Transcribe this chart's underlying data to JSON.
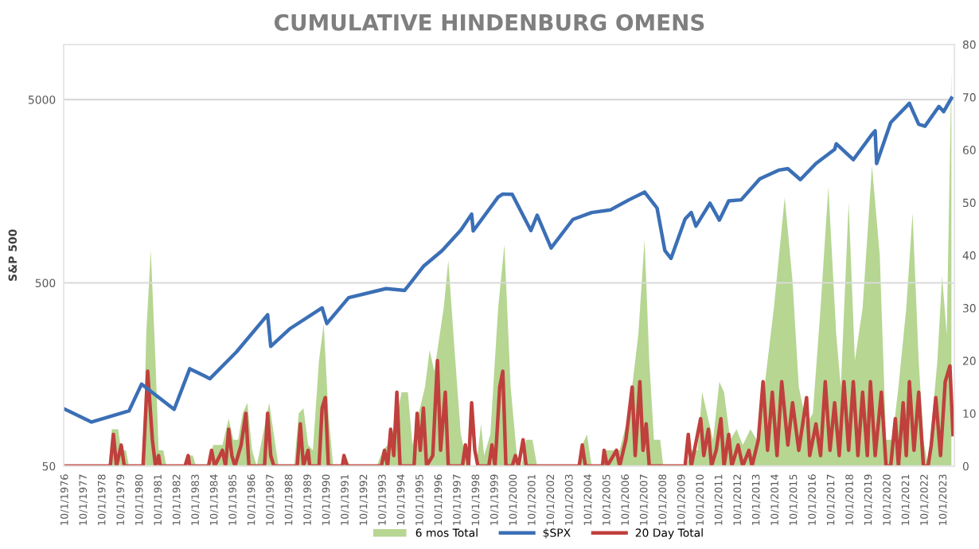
{
  "chart_data": {
    "type": "line",
    "title": "CUMULATIVE HINDENBURG OMENS",
    "ylabel": "S&P 500",
    "log": "y",
    "grid": "y",
    "legend": "bottom",
    "marker": "none",
    "line_style": "solid",
    "xlim": [
      "1976-09",
      "2024-05"
    ],
    "xticks": [
      {
        "value": "1976-10-01",
        "label": "10/1/1976"
      },
      {
        "value": "1977-10-01",
        "label": "10/1/1977"
      },
      {
        "value": "1978-10-01",
        "label": "10/1/1978"
      },
      {
        "value": "1979-10-01",
        "label": "10/1/1979"
      },
      {
        "value": "1980-10-01",
        "label": "10/1/1980"
      },
      {
        "value": "1981-10-01",
        "label": "10/1/1981"
      },
      {
        "value": "1982-10-01",
        "label": "10/1/1982"
      },
      {
        "value": "1983-10-01",
        "label": "10/1/1983"
      },
      {
        "value": "1984-10-01",
        "label": "10/1/1984"
      },
      {
        "value": "1985-10-01",
        "label": "10/1/1985"
      },
      {
        "value": "1986-10-01",
        "label": "10/1/1986"
      },
      {
        "value": "1987-10-01",
        "label": "10/1/1987"
      },
      {
        "value": "1988-10-01",
        "label": "10/1/1988"
      },
      {
        "value": "1989-10-01",
        "label": "10/1/1989"
      },
      {
        "value": "1990-10-01",
        "label": "10/1/1990"
      },
      {
        "value": "1991-10-01",
        "label": "10/1/1991"
      },
      {
        "value": "1992-10-01",
        "label": "10/1/1992"
      },
      {
        "value": "1993-10-01",
        "label": "10/1/1993"
      },
      {
        "value": "1994-10-01",
        "label": "10/1/1994"
      },
      {
        "value": "1995-10-01",
        "label": "10/1/1995"
      },
      {
        "value": "1996-10-01",
        "label": "10/1/1996"
      },
      {
        "value": "1997-10-01",
        "label": "10/1/1997"
      },
      {
        "value": "1998-10-01",
        "label": "10/1/1998"
      },
      {
        "value": "1999-10-01",
        "label": "10/1/1999"
      },
      {
        "value": "2000-10-01",
        "label": "10/1/2000"
      },
      {
        "value": "2001-10-01",
        "label": "10/1/2001"
      },
      {
        "value": "2002-10-01",
        "label": "10/1/2002"
      },
      {
        "value": "2003-10-01",
        "label": "10/1/2003"
      },
      {
        "value": "2004-10-01",
        "label": "10/1/2004"
      },
      {
        "value": "2005-10-01",
        "label": "10/1/2005"
      },
      {
        "value": "2006-10-01",
        "label": "10/1/2006"
      },
      {
        "value": "2007-10-01",
        "label": "10/1/2007"
      },
      {
        "value": "2008-10-01",
        "label": "10/1/2008"
      },
      {
        "value": "2009-10-01",
        "label": "10/1/2009"
      },
      {
        "value": "2010-10-01",
        "label": "10/1/2010"
      },
      {
        "value": "2011-10-01",
        "label": "10/1/2011"
      },
      {
        "value": "2012-10-01",
        "label": "10/1/2012"
      },
      {
        "value": "2013-10-01",
        "label": "10/1/2013"
      },
      {
        "value": "2014-10-01",
        "label": "10/1/2014"
      },
      {
        "value": "2015-10-01",
        "label": "10/1/2015"
      },
      {
        "value": "2016-10-01",
        "label": "10/1/2016"
      },
      {
        "value": "2017-10-01",
        "label": "10/1/2017"
      },
      {
        "value": "2018-10-01",
        "label": "10/1/2018"
      },
      {
        "value": "2019-10-01",
        "label": "10/1/2019"
      },
      {
        "value": "2020-10-01",
        "label": "10/1/2020"
      },
      {
        "value": "2021-10-01",
        "label": "10/1/2021"
      },
      {
        "value": "2022-10-01",
        "label": "10/1/2022"
      },
      {
        "value": "2023-10-01",
        "label": "10/1/2023"
      }
    ],
    "ylim": [
      50,
      10000
    ],
    "yticks": [
      50,
      500,
      5000
    ],
    "y2lim": [
      0,
      80
    ],
    "y2ticks": [
      0,
      10,
      20,
      30,
      40,
      50,
      60,
      70,
      80
    ],
    "series": [
      {
        "name": "6 mos Total",
        "type": "area",
        "axis": "y2",
        "color": "#a9cf7f",
        "x": [
          "1976-10",
          "1979-02",
          "1979-04",
          "1979-08",
          "1979-10",
          "1980-01",
          "1980-03",
          "1980-12",
          "1981-02",
          "1981-05",
          "1981-08",
          "1981-10",
          "1982-01",
          "1982-03",
          "1983-03",
          "1983-05",
          "1983-08",
          "1983-10",
          "1984-06",
          "1984-09",
          "1985-03",
          "1985-07",
          "1985-10",
          "1986-01",
          "1986-04",
          "1986-07",
          "1986-10",
          "1987-01",
          "1987-07",
          "1987-09",
          "1987-12",
          "1988-03",
          "1989-01",
          "1989-04",
          "1989-07",
          "1989-10",
          "1990-01",
          "1990-05",
          "1990-08",
          "1990-11",
          "1991-02",
          "1991-08",
          "1991-10",
          "1992-01",
          "1993-06",
          "1993-10",
          "1994-01",
          "1994-06",
          "1994-10",
          "1995-02",
          "1995-05",
          "1995-09",
          "1996-01",
          "1996-04",
          "1996-07",
          "1997-01",
          "1997-04",
          "1997-08",
          "1997-12",
          "1998-03",
          "1998-06",
          "1998-10",
          "1999-01",
          "1999-03",
          "1999-07",
          "1999-12",
          "2000-04",
          "2000-08",
          "2000-12",
          "2001-03",
          "2001-06",
          "2001-10",
          "2002-01",
          "2004-03",
          "2004-06",
          "2004-09",
          "2004-12",
          "2005-06",
          "2005-09",
          "2006-01",
          "2006-06",
          "2006-12",
          "2007-06",
          "2007-10",
          "2008-01",
          "2008-04",
          "2008-08",
          "2008-10",
          "2010-01",
          "2010-04",
          "2010-08",
          "2010-11",
          "2011-02",
          "2011-06",
          "2011-10",
          "2012-01",
          "2012-05",
          "2012-09",
          "2013-01",
          "2013-06",
          "2013-10",
          "2014-03",
          "2014-09",
          "2015-04",
          "2015-09",
          "2016-01",
          "2016-06",
          "2016-10",
          "2017-03",
          "2017-08",
          "2018-01",
          "2018-04",
          "2018-09",
          "2019-01",
          "2019-06",
          "2019-12",
          "2020-05",
          "2020-09",
          "2021-01",
          "2021-05",
          "2021-10",
          "2022-02",
          "2022-06",
          "2022-09",
          "2022-12",
          "2023-03",
          "2023-06",
          "2023-09",
          "2023-12",
          "2024-03"
        ],
        "values": [
          0,
          0,
          7,
          7,
          3,
          3,
          0,
          0,
          25,
          41,
          20,
          3,
          3,
          0,
          0,
          2,
          2,
          0,
          0,
          4,
          4,
          9,
          5,
          5,
          10,
          12,
          3,
          0,
          9,
          12,
          6,
          0,
          0,
          10,
          11,
          4,
          3,
          20,
          27,
          10,
          0,
          0,
          2,
          0,
          0,
          3,
          4,
          8,
          14,
          14,
          4,
          10,
          15,
          22,
          18,
          30,
          39,
          22,
          6,
          2,
          0,
          0,
          8,
          2,
          6,
          30,
          42,
          15,
          2,
          0,
          5,
          5,
          0,
          0,
          4,
          6,
          0,
          0,
          3,
          3,
          3,
          10,
          25,
          43,
          20,
          5,
          5,
          0,
          0,
          3,
          3,
          14,
          10,
          5,
          16,
          14,
          5,
          7,
          4,
          7,
          5,
          15,
          30,
          51,
          35,
          15,
          8,
          10,
          30,
          53,
          25,
          15,
          50,
          20,
          30,
          57,
          40,
          5,
          5,
          15,
          30,
          48,
          20,
          5,
          0,
          10,
          20,
          36,
          25,
          75
        ]
      },
      {
        "name": "$SPX",
        "axis": "y",
        "color": "#3b6fb6",
        "x": [
          "1976-10",
          "1978-03",
          "1980-03",
          "1980-11",
          "1982-08",
          "1983-06",
          "1984-07",
          "1985-12",
          "1987-08",
          "1987-10",
          "1988-10",
          "1990-07",
          "1990-10",
          "1991-12",
          "1993-12",
          "1994-12",
          "1995-12",
          "1996-12",
          "1997-12",
          "1998-07",
          "1998-08",
          "1999-12",
          "2000-03",
          "2000-09",
          "2001-09",
          "2002-01",
          "2002-10",
          "2003-12",
          "2004-12",
          "2005-12",
          "2006-12",
          "2007-10",
          "2008-06",
          "2008-11",
          "2009-03",
          "2009-12",
          "2010-04",
          "2010-07",
          "2011-04",
          "2011-10",
          "2012-04",
          "2012-12",
          "2013-12",
          "2014-12",
          "2015-06",
          "2016-02",
          "2016-12",
          "2017-12",
          "2018-01",
          "2018-12",
          "2019-12",
          "2020-02",
          "2020-03",
          "2020-12",
          "2021-12",
          "2022-06",
          "2022-10",
          "2023-07",
          "2023-10",
          "2024-03"
        ],
        "values": [
          102,
          87,
          100,
          140,
          102,
          170,
          150,
          210,
          335,
          225,
          280,
          365,
          300,
          415,
          465,
          455,
          615,
          750,
          970,
          1185,
          960,
          1470,
          1527,
          1520,
          965,
          1170,
          775,
          1110,
          1210,
          1250,
          1420,
          1565,
          1280,
          750,
          680,
          1115,
          1210,
          1020,
          1360,
          1100,
          1400,
          1420,
          1850,
          2060,
          2100,
          1830,
          2240,
          2675,
          2870,
          2350,
          3230,
          3380,
          2240,
          3750,
          4770,
          3670,
          3580,
          4590,
          4300,
          5100
        ]
      },
      {
        "name": "20 Day Total",
        "type": "line",
        "axis": "y2",
        "color": "#c0403d",
        "x": [
          "1976-10",
          "1979-03",
          "1979-05",
          "1979-07",
          "1979-10",
          "1979-12",
          "1980-12",
          "1981-03",
          "1981-06",
          "1981-08",
          "1981-10",
          "1981-11",
          "1983-03",
          "1983-05",
          "1983-06",
          "1984-06",
          "1984-08",
          "1984-10",
          "1985-03",
          "1985-05",
          "1985-07",
          "1985-09",
          "1985-11",
          "1986-03",
          "1986-06",
          "1986-08",
          "1987-06",
          "1987-08",
          "1987-10",
          "1987-12",
          "1989-03",
          "1989-05",
          "1989-07",
          "1989-10",
          "1989-11",
          "1990-05",
          "1990-07",
          "1990-09",
          "1990-11",
          "1991-08",
          "1991-09",
          "1991-11",
          "1993-09",
          "1993-11",
          "1994-01",
          "1994-03",
          "1994-05",
          "1994-07",
          "1994-09",
          "1995-06",
          "1995-08",
          "1995-10",
          "1995-12",
          "1996-02",
          "1996-06",
          "1996-09",
          "1996-11",
          "1997-02",
          "1997-04",
          "1998-01",
          "1998-03",
          "1998-05",
          "1998-07",
          "1998-09",
          "1998-11",
          "1999-06",
          "1999-08",
          "1999-10",
          "2000-01",
          "2000-03",
          "2000-05",
          "2000-09",
          "2000-11",
          "2001-01",
          "2001-04",
          "2001-06",
          "2004-04",
          "2004-06",
          "2004-08",
          "2005-07",
          "2005-08",
          "2005-10",
          "2006-04",
          "2006-06",
          "2006-10",
          "2007-02",
          "2007-04",
          "2007-07",
          "2007-09",
          "2007-11",
          "2008-01",
          "2009-12",
          "2010-02",
          "2010-04",
          "2010-10",
          "2010-12",
          "2011-03",
          "2011-05",
          "2011-08",
          "2011-11",
          "2012-01",
          "2012-04",
          "2012-06",
          "2012-10",
          "2013-01",
          "2013-05",
          "2013-07",
          "2013-11",
          "2014-02",
          "2014-05",
          "2014-08",
          "2014-11",
          "2015-02",
          "2015-06",
          "2015-09",
          "2016-01",
          "2016-06",
          "2016-08",
          "2016-12",
          "2017-03",
          "2017-06",
          "2017-09",
          "2017-12",
          "2018-03",
          "2018-06",
          "2018-09",
          "2018-12",
          "2019-03",
          "2019-06",
          "2019-09",
          "2019-11",
          "2020-02",
          "2020-06",
          "2020-09",
          "2020-12",
          "2021-03",
          "2021-05",
          "2021-08",
          "2021-10",
          "2021-12",
          "2022-03",
          "2022-06",
          "2022-09",
          "2022-12",
          "2023-02",
          "2023-05",
          "2023-08",
          "2023-11",
          "2024-02",
          "2024-04"
        ],
        "values": [
          0,
          0,
          6,
          0,
          4,
          0,
          0,
          18,
          5,
          0,
          2,
          0,
          0,
          2,
          0,
          0,
          3,
          0,
          3,
          0,
          7,
          2,
          0,
          4,
          10,
          0,
          0,
          10,
          2,
          0,
          0,
          8,
          0,
          3,
          0,
          0,
          11,
          13,
          0,
          0,
          2,
          0,
          0,
          3,
          0,
          7,
          2,
          14,
          0,
          0,
          10,
          3,
          11,
          0,
          2,
          20,
          3,
          14,
          0,
          0,
          4,
          0,
          12,
          3,
          0,
          0,
          4,
          0,
          15,
          18,
          0,
          0,
          2,
          0,
          5,
          0,
          0,
          4,
          0,
          0,
          3,
          0,
          3,
          0,
          5,
          15,
          2,
          16,
          3,
          8,
          0,
          0,
          6,
          0,
          9,
          2,
          7,
          0,
          3,
          9,
          0,
          6,
          0,
          4,
          0,
          3,
          0,
          5,
          16,
          3,
          14,
          2,
          16,
          4,
          12,
          3,
          13,
          2,
          8,
          2,
          16,
          3,
          12,
          2,
          16,
          3,
          16,
          2,
          14,
          2,
          16,
          2,
          14,
          0,
          0,
          9,
          0,
          12,
          2,
          16,
          3,
          14,
          0,
          0,
          4,
          13,
          2,
          16,
          19,
          6
        ]
      }
    ]
  }
}
